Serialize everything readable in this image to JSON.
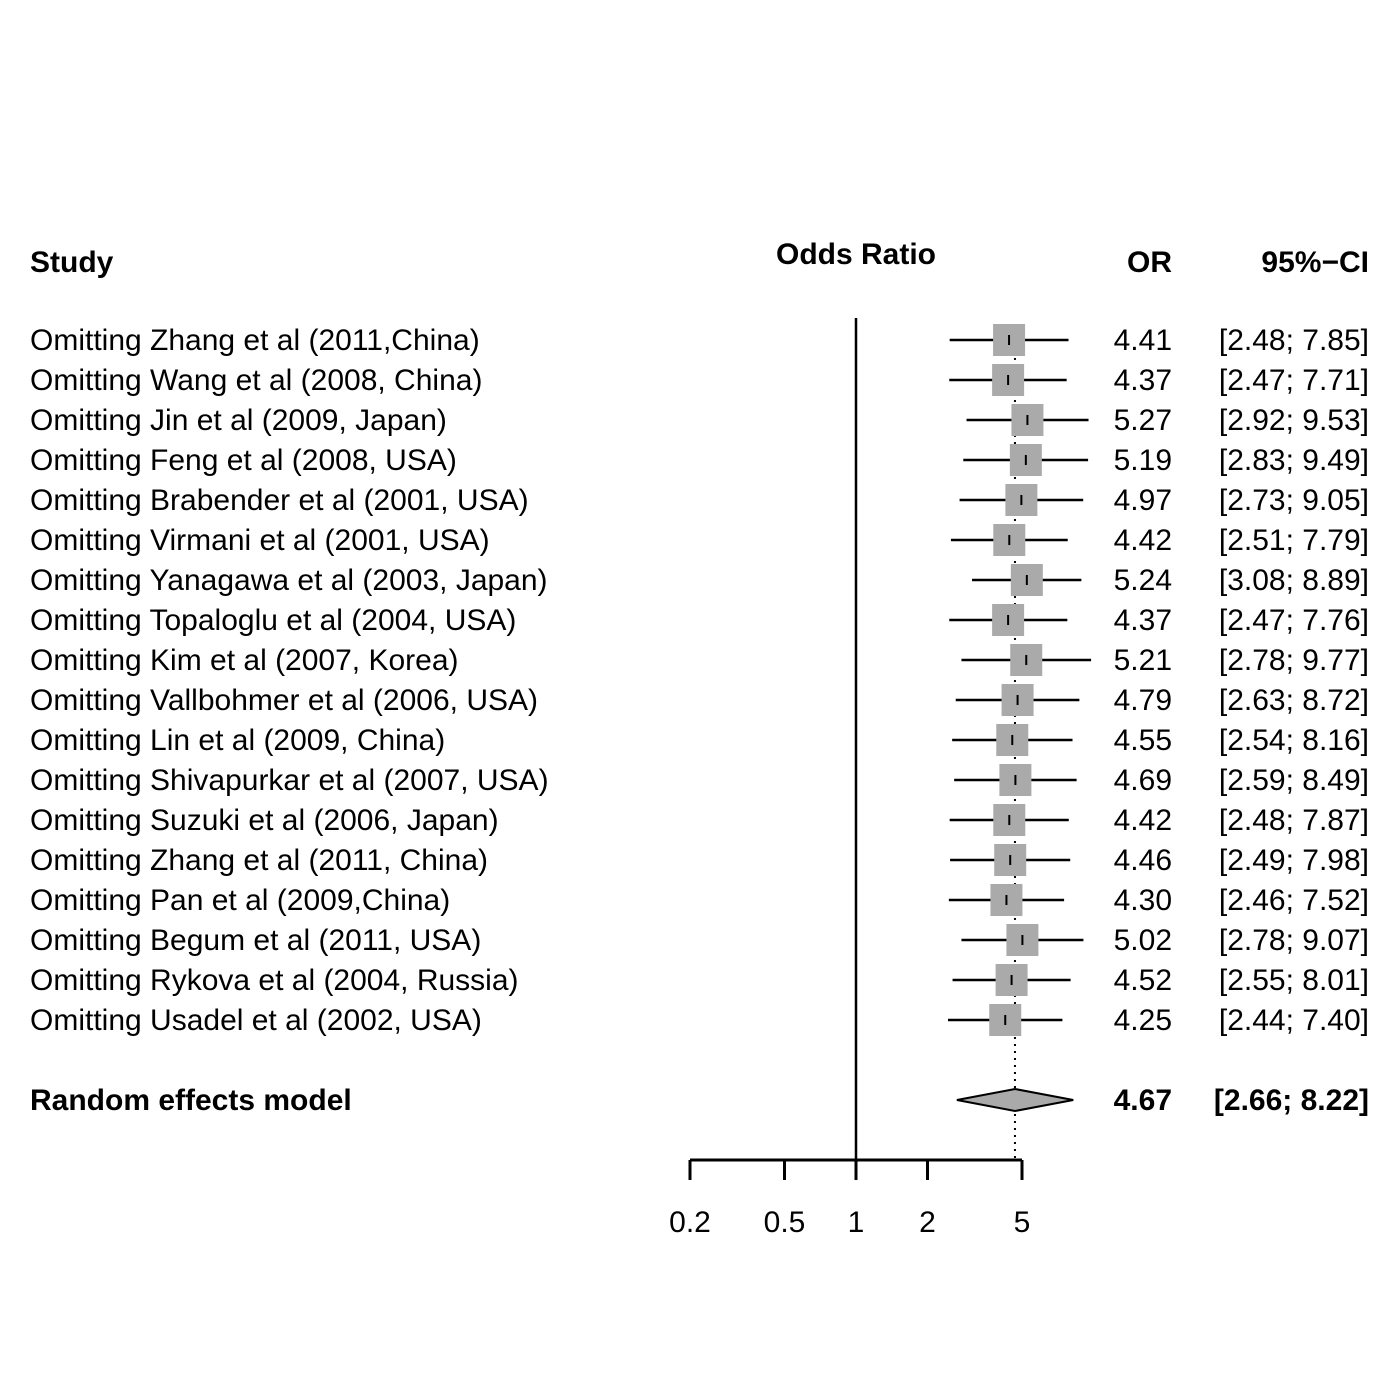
{
  "headers": {
    "study": "Study",
    "plot": "Odds Ratio",
    "or": "OR",
    "ci": "95%−CI"
  },
  "chart_data": {
    "type": "forest",
    "measure": "Odds Ratio",
    "x_scale": "log",
    "xlim": [
      0.2,
      5
    ],
    "null_line": 1,
    "x_ticks": [
      "0.2",
      "0.5",
      "1",
      "2",
      "5"
    ],
    "studies": [
      {
        "label": "Omitting Zhang et al (2011,China)",
        "or": 4.41,
        "lower": 2.48,
        "upper": 7.85,
        "or_text": "4.41",
        "ci_text": "[2.48; 7.85]"
      },
      {
        "label": "Omitting Wang et al (2008, China)",
        "or": 4.37,
        "lower": 2.47,
        "upper": 7.71,
        "or_text": "4.37",
        "ci_text": "[2.47; 7.71]"
      },
      {
        "label": "Omitting Jin et al (2009, Japan)",
        "or": 5.27,
        "lower": 2.92,
        "upper": 9.53,
        "or_text": "5.27",
        "ci_text": "[2.92; 9.53]"
      },
      {
        "label": "Omitting Feng et al (2008, USA)",
        "or": 5.19,
        "lower": 2.83,
        "upper": 9.49,
        "or_text": "5.19",
        "ci_text": "[2.83; 9.49]"
      },
      {
        "label": "Omitting Brabender et al (2001, USA)",
        "or": 4.97,
        "lower": 2.73,
        "upper": 9.05,
        "or_text": "4.97",
        "ci_text": "[2.73; 9.05]"
      },
      {
        "label": "Omitting Virmani et al (2001, USA)",
        "or": 4.42,
        "lower": 2.51,
        "upper": 7.79,
        "or_text": "4.42",
        "ci_text": "[2.51; 7.79]"
      },
      {
        "label": "Omitting Yanagawa et al (2003, Japan)",
        "or": 5.24,
        "lower": 3.08,
        "upper": 8.89,
        "or_text": "5.24",
        "ci_text": "[3.08; 8.89]"
      },
      {
        "label": "Omitting Topaloglu et al (2004, USA)",
        "or": 4.37,
        "lower": 2.47,
        "upper": 7.76,
        "or_text": "4.37",
        "ci_text": "[2.47; 7.76]"
      },
      {
        "label": "Omitting Kim et al (2007, Korea)",
        "or": 5.21,
        "lower": 2.78,
        "upper": 9.77,
        "or_text": "5.21",
        "ci_text": "[2.78; 9.77]"
      },
      {
        "label": "Omitting Vallbohmer et al (2006, USA)",
        "or": 4.79,
        "lower": 2.63,
        "upper": 8.72,
        "or_text": "4.79",
        "ci_text": "[2.63; 8.72]"
      },
      {
        "label": "Omitting Lin et al (2009, China)",
        "or": 4.55,
        "lower": 2.54,
        "upper": 8.16,
        "or_text": "4.55",
        "ci_text": "[2.54; 8.16]"
      },
      {
        "label": "Omitting Shivapurkar et al (2007, USA)",
        "or": 4.69,
        "lower": 2.59,
        "upper": 8.49,
        "or_text": "4.69",
        "ci_text": "[2.59; 8.49]"
      },
      {
        "label": "Omitting Suzuki et al (2006, Japan)",
        "or": 4.42,
        "lower": 2.48,
        "upper": 7.87,
        "or_text": "4.42",
        "ci_text": "[2.48; 7.87]"
      },
      {
        "label": "Omitting Zhang et al (2011, China)",
        "or": 4.46,
        "lower": 2.49,
        "upper": 7.98,
        "or_text": "4.46",
        "ci_text": "[2.49; 7.98]"
      },
      {
        "label": "Omitting Pan et al (2009,China)",
        "or": 4.3,
        "lower": 2.46,
        "upper": 7.52,
        "or_text": "4.30",
        "ci_text": "[2.46; 7.52]"
      },
      {
        "label": "Omitting Begum et al (2011, USA)",
        "or": 5.02,
        "lower": 2.78,
        "upper": 9.07,
        "or_text": "5.02",
        "ci_text": "[2.78; 9.07]"
      },
      {
        "label": "Omitting Rykova et al (2004, Russia)",
        "or": 4.52,
        "lower": 2.55,
        "upper": 8.01,
        "or_text": "4.52",
        "ci_text": "[2.55; 8.01]"
      },
      {
        "label": "Omitting Usadel et al (2002, USA)",
        "or": 4.25,
        "lower": 2.44,
        "upper": 7.4,
        "or_text": "4.25",
        "ci_text": "[2.44; 7.40]"
      }
    ],
    "pooled": {
      "label": "Random effects model",
      "or": 4.67,
      "lower": 2.66,
      "upper": 8.22,
      "or_text": "4.67",
      "ci_text": "[2.66; 8.22]"
    },
    "colors": {
      "box": "#aaaaaa",
      "diamond": "#aaaaaa",
      "line": "#000000"
    }
  }
}
